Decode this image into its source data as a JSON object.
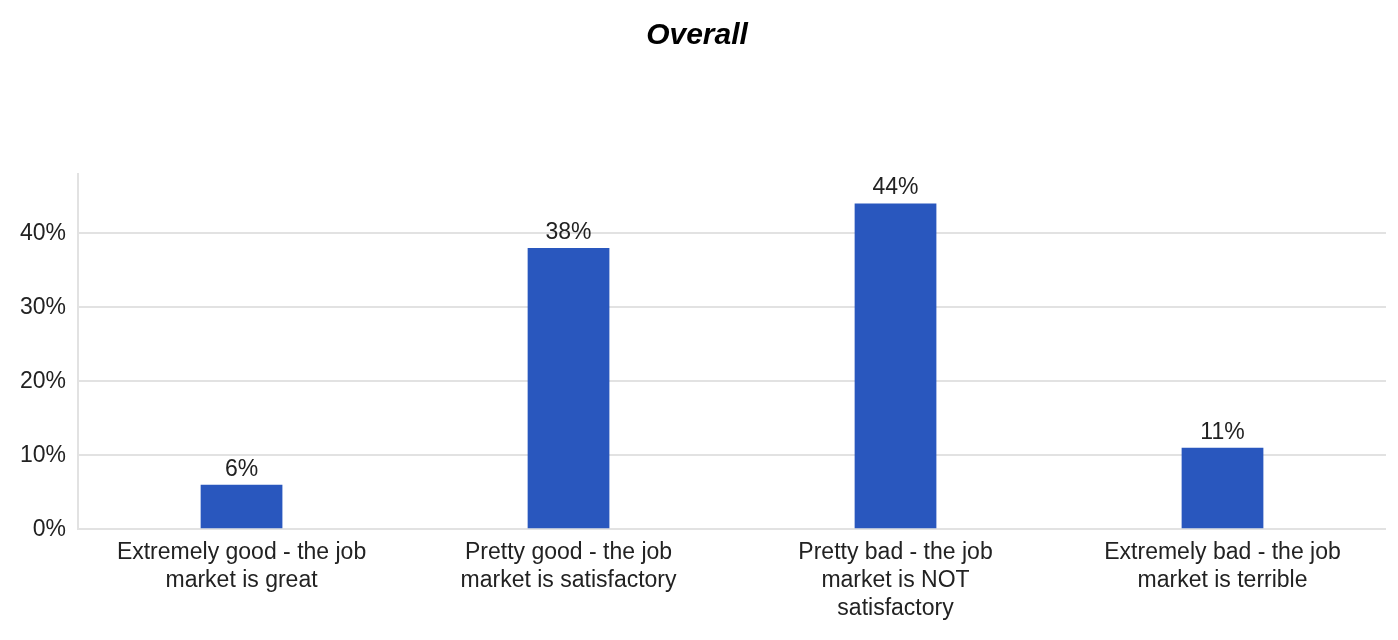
{
  "chart_data": {
    "type": "bar",
    "title": "Overall",
    "categories": [
      "Extremely good - the job market is great",
      "Pretty good - the job market is satisfactory",
      "Pretty bad - the job market is NOT satisfactory",
      "Extremely bad - the job market is terrible"
    ],
    "values": [
      6,
      38,
      44,
      11
    ],
    "value_labels": [
      "6%",
      "38%",
      "44%",
      "11%"
    ],
    "color": "#2957be",
    "ylim": [
      0,
      48
    ],
    "yticks": [
      {
        "value": 0,
        "label": "0%"
      },
      {
        "value": 10,
        "label": "10%"
      },
      {
        "value": 20,
        "label": "20%"
      },
      {
        "value": 30,
        "label": "30%"
      },
      {
        "value": 40,
        "label": "40%"
      }
    ],
    "grid": "y",
    "legend": false
  }
}
